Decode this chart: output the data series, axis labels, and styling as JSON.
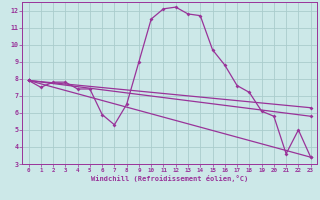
{
  "xlabel": "Windchill (Refroidissement éolien,°C)",
  "xlim": [
    -0.5,
    23.5
  ],
  "ylim": [
    3,
    12.5
  ],
  "yticks": [
    3,
    4,
    5,
    6,
    7,
    8,
    9,
    10,
    11,
    12
  ],
  "xticks": [
    0,
    1,
    2,
    3,
    4,
    5,
    6,
    7,
    8,
    9,
    10,
    11,
    12,
    13,
    14,
    15,
    16,
    17,
    18,
    19,
    20,
    21,
    22,
    23
  ],
  "bg_color": "#cce8e8",
  "line_color": "#993399",
  "grid_color": "#aacccc",
  "line1_x": [
    0,
    1,
    2,
    3,
    4,
    5,
    6,
    7,
    8,
    9,
    10,
    11,
    12,
    13,
    14,
    15,
    16,
    17,
    18,
    19,
    20,
    21,
    22,
    23
  ],
  "line1_y": [
    7.9,
    7.5,
    7.8,
    7.8,
    7.4,
    7.4,
    5.9,
    5.3,
    6.5,
    9.0,
    11.5,
    12.1,
    12.2,
    11.8,
    11.7,
    9.7,
    8.8,
    7.6,
    7.2,
    6.1,
    5.8,
    3.6,
    5.0,
    3.4
  ],
  "line2_x": [
    0,
    23
  ],
  "line2_y": [
    7.9,
    6.3
  ],
  "line3_x": [
    0,
    23
  ],
  "line3_y": [
    7.9,
    3.4
  ],
  "line4_x": [
    0,
    23
  ],
  "line4_y": [
    7.9,
    5.8
  ]
}
